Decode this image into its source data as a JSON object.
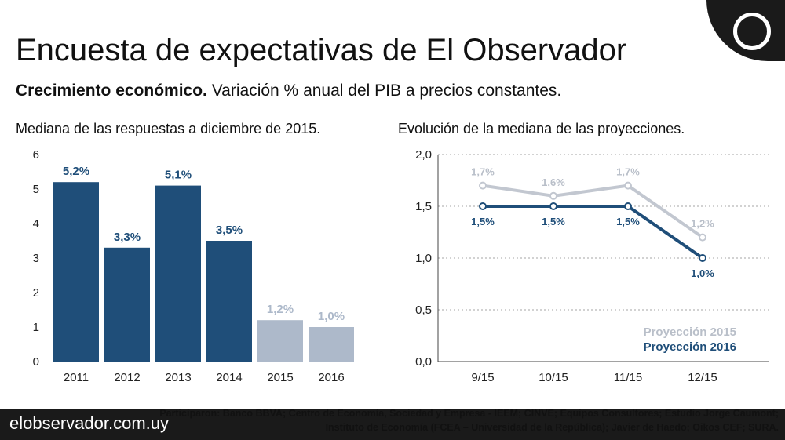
{
  "header": {
    "title": "Encuesta de expectativas de El Observador",
    "subtitle_bold": "Crecimiento económico.",
    "subtitle_rest": "Variación % anual del PIB a precios constantes."
  },
  "footer": {
    "site": "elobservador.com.uy",
    "note": "Participaron: Banco BBVA; Centro de Economía, Sociedad y Empresa - IEEM; CINVE; Equipos Consultores; Estudio Jorge Caumont; Instituto de Economía (FCEA – Universidad de la República); Javier de Haedo; Oikos CEF; SURA."
  },
  "colors": {
    "dark_blue": "#1f4e79",
    "light_gray": "#adb9ca",
    "line_gray": "#c2c7d0"
  },
  "chart_data": [
    {
      "type": "bar",
      "title": "Mediana de las respuestas a diciembre de 2015.",
      "categories": [
        "2011",
        "2012",
        "2013",
        "2014",
        "2015",
        "2016"
      ],
      "values": [
        5.2,
        3.3,
        5.1,
        3.5,
        1.2,
        1.0
      ],
      "labels": [
        "5,2%",
        "3,3%",
        "5,1%",
        "3,5%",
        "1,2%",
        "1,0%"
      ],
      "projected": [
        false,
        false,
        false,
        false,
        true,
        true
      ],
      "ylim": [
        0,
        6
      ],
      "yticks": [
        "0",
        "1",
        "2",
        "3",
        "4",
        "5",
        "6"
      ]
    },
    {
      "type": "line",
      "title": "Evolución de la mediana de las proyecciones.",
      "categories": [
        "9/15",
        "10/15",
        "11/15",
        "12/15"
      ],
      "ylim": [
        0,
        2
      ],
      "yticks": [
        {
          "value": 0,
          "label": "0,0"
        },
        {
          "value": 0.5,
          "label": "0,5"
        },
        {
          "value": 1,
          "label": "1,0"
        },
        {
          "value": 1.5,
          "label": "1,5"
        },
        {
          "value": 2,
          "label": "2,0"
        }
      ],
      "series": [
        {
          "name": "Proyección 2015",
          "values": [
            1.7,
            1.6,
            1.7,
            1.2
          ],
          "labels": [
            "1,7%",
            "1,6%",
            "1,7%",
            "1,2%"
          ],
          "color": "#c2c7d0"
        },
        {
          "name": "Proyección 2016",
          "values": [
            1.5,
            1.5,
            1.5,
            1.0
          ],
          "labels": [
            "1,5%",
            "1,5%",
            "1,5%",
            "1,0%"
          ],
          "color": "#1f4e79"
        }
      ],
      "legend": "bottom-right"
    }
  ]
}
